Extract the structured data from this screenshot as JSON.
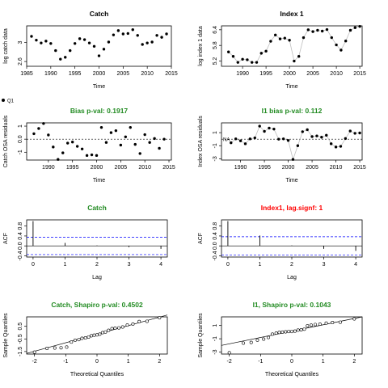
{
  "colors": {
    "green": "#228b22",
    "red": "#ff0000",
    "blue": "#0000ff",
    "grey": "#bebebe",
    "black": "#000000"
  },
  "legend_label": "Q1",
  "chart_data": [
    {
      "type": "scatter",
      "title": "Catch",
      "title_color": "#000000",
      "xlabel": "Time",
      "ylabel": "log catch data",
      "xlim": [
        1985,
        2015
      ],
      "ylim": [
        2.5,
        3.35
      ],
      "xticks": [
        1985,
        1990,
        1995,
        2000,
        2005,
        2010,
        2015
      ],
      "yticks": [
        2.6,
        3.0
      ],
      "connect": false,
      "zero_line": false,
      "points": [
        [
          1986,
          3.13
        ],
        [
          1987,
          3.05
        ],
        [
          1988,
          2.99
        ],
        [
          1989,
          3.03
        ],
        [
          1990,
          2.98
        ],
        [
          1991,
          2.83
        ],
        [
          1992,
          2.65
        ],
        [
          1993,
          2.69
        ],
        [
          1994,
          2.83
        ],
        [
          1995,
          2.98
        ],
        [
          1996,
          3.08
        ],
        [
          1997,
          3.06
        ],
        [
          1998,
          2.99
        ],
        [
          1999,
          2.92
        ],
        [
          2000,
          2.72
        ],
        [
          2001,
          2.86
        ],
        [
          2002,
          3.01
        ],
        [
          2003,
          3.16
        ],
        [
          2004,
          3.25
        ],
        [
          2005,
          3.18
        ],
        [
          2006,
          3.19
        ],
        [
          2007,
          3.27
        ],
        [
          2008,
          3.15
        ],
        [
          2009,
          2.96
        ],
        [
          2010,
          2.99
        ],
        [
          2011,
          3.01
        ],
        [
          2012,
          3.15
        ],
        [
          2013,
          3.11
        ],
        [
          2014,
          3.18
        ]
      ]
    },
    {
      "type": "line",
      "title": "Index 1",
      "title_color": "#000000",
      "xlabel": "Time",
      "ylabel": "log index 1 data",
      "xlim": [
        1985.5,
        2015.5
      ],
      "ylim": [
        5.0,
        6.55
      ],
      "xticks": [
        1990,
        1995,
        2000,
        2005,
        2010,
        2015
      ],
      "yticks": [
        5.2,
        5.8,
        6.4
      ],
      "connect": true,
      "zero_line": false,
      "points": [
        [
          1987,
          5.55
        ],
        [
          1988,
          5.38
        ],
        [
          1989,
          5.15
        ],
        [
          1990,
          5.27
        ],
        [
          1991,
          5.25
        ],
        [
          1992,
          5.15
        ],
        [
          1993,
          5.15
        ],
        [
          1994,
          5.5
        ],
        [
          1995,
          5.58
        ],
        [
          1996,
          5.96
        ],
        [
          1997,
          6.2
        ],
        [
          1998,
          6.05
        ],
        [
          1999,
          6.08
        ],
        [
          2000,
          6.0
        ],
        [
          2001,
          5.2
        ],
        [
          2002,
          5.38
        ],
        [
          2003,
          6.1
        ],
        [
          2004,
          6.4
        ],
        [
          2005,
          6.33
        ],
        [
          2006,
          6.38
        ],
        [
          2007,
          6.35
        ],
        [
          2008,
          6.41
        ],
        [
          2009,
          6.1
        ],
        [
          2010,
          5.82
        ],
        [
          2011,
          5.62
        ],
        [
          2012,
          5.97
        ],
        [
          2013,
          6.38
        ],
        [
          2014,
          6.48
        ],
        [
          2015,
          6.53
        ]
      ]
    },
    {
      "type": "scatter",
      "title": "Bias p-val: 0.1917",
      "title_color": "#228b22",
      "xlabel": "Time",
      "ylabel": "Catch OSA residuals",
      "xlim": [
        1985.5,
        2015.5
      ],
      "ylim": [
        -1.6,
        1.25
      ],
      "xticks": [
        1990,
        1995,
        2000,
        2005,
        2010,
        2015
      ],
      "yticks": [
        -1.0,
        0.0,
        1.0
      ],
      "connect": false,
      "zero_line": true,
      "points": [
        [
          1987,
          0.42
        ],
        [
          1988,
          0.82
        ],
        [
          1989,
          1.2
        ],
        [
          1990,
          0.32
        ],
        [
          1991,
          -0.6
        ],
        [
          1992,
          -1.55
        ],
        [
          1993,
          -1.05
        ],
        [
          1994,
          -0.3
        ],
        [
          1995,
          -0.22
        ],
        [
          1996,
          -0.55
        ],
        [
          1997,
          -0.75
        ],
        [
          1998,
          -1.25
        ],
        [
          1999,
          -1.2
        ],
        [
          2000,
          -1.25
        ],
        [
          2001,
          0.9
        ],
        [
          2002,
          -0.25
        ],
        [
          2003,
          0.5
        ],
        [
          2004,
          0.65
        ],
        [
          2005,
          -0.45
        ],
        [
          2006,
          0.18
        ],
        [
          2007,
          0.9
        ],
        [
          2008,
          -0.4
        ],
        [
          2009,
          -1.1
        ],
        [
          2010,
          0.35
        ],
        [
          2011,
          -0.25
        ],
        [
          2012,
          0.05
        ],
        [
          2013,
          -0.7
        ],
        [
          2014,
          0.0
        ]
      ]
    },
    {
      "type": "line",
      "title": "I1 bias p-val: 0.112",
      "title_color": "#228b22",
      "xlabel": "Time",
      "ylabel": "Index OSA residuals",
      "xlim": [
        1986,
        2015.5
      ],
      "ylim": [
        -3.2,
        2.5
      ],
      "xticks": [
        1990,
        1995,
        2000,
        2005,
        2010,
        2015
      ],
      "yticks": [
        -3,
        -1,
        1
      ],
      "connect": true,
      "zero_line": true,
      "na_label": "NA",
      "points": [
        [
          1988,
          -0.55
        ],
        [
          1989,
          0.05
        ],
        [
          1990,
          -0.25
        ],
        [
          1991,
          -0.7
        ],
        [
          1992,
          0.05
        ],
        [
          1993,
          0.2
        ],
        [
          1994,
          2.0
        ],
        [
          1995,
          1.2
        ],
        [
          1996,
          1.7
        ],
        [
          1997,
          1.55
        ],
        [
          1998,
          0.0
        ],
        [
          1999,
          0.05
        ],
        [
          2000,
          -0.2
        ],
        [
          2001,
          -3.1
        ],
        [
          2002,
          -1.0
        ],
        [
          2003,
          1.15
        ],
        [
          2004,
          1.45
        ],
        [
          2005,
          0.4
        ],
        [
          2006,
          0.5
        ],
        [
          2007,
          0.3
        ],
        [
          2008,
          0.6
        ],
        [
          2009,
          -0.7
        ],
        [
          2010,
          -1.2
        ],
        [
          2011,
          -1.1
        ],
        [
          2012,
          0.1
        ],
        [
          2013,
          1.25
        ],
        [
          2014,
          0.9
        ],
        [
          2015,
          0.95
        ]
      ]
    },
    {
      "type": "bar",
      "title": "Catch",
      "title_color": "#228b22",
      "xlabel": "Lag",
      "ylabel": "ACF",
      "xlim": [
        -0.2,
        4.2
      ],
      "ylim": [
        -0.45,
        1.05
      ],
      "xticks": [
        0,
        1,
        2,
        3,
        4
      ],
      "yticks": [
        -0.4,
        0.0,
        0.4,
        0.8
      ],
      "ci": 0.35,
      "bars": [
        [
          0,
          1.0
        ],
        [
          1,
          0.12
        ],
        [
          2,
          0.02
        ],
        [
          3,
          -0.05
        ],
        [
          4,
          -0.12
        ]
      ]
    },
    {
      "type": "bar",
      "title": "Index1, lag.signf: 1",
      "title_color": "#ff0000",
      "xlabel": "Lag",
      "ylabel": "ACF",
      "xlim": [
        -0.2,
        4.2
      ],
      "ylim": [
        -0.45,
        1.05
      ],
      "xticks": [
        0,
        1,
        2,
        3,
        4
      ],
      "yticks": [
        -0.4,
        0.0,
        0.4,
        0.8
      ],
      "ci": 0.37,
      "bars": [
        [
          0,
          1.0
        ],
        [
          1,
          0.42
        ],
        [
          2,
          0.02
        ],
        [
          3,
          -0.12
        ],
        [
          4,
          -0.2
        ]
      ]
    },
    {
      "type": "scatter",
      "title": "Catch, Shapiro p-val: 0.4502",
      "title_color": "#228b22",
      "xlabel": "Theoretical Quantiles",
      "ylabel": "Sample Quantiles",
      "xlim": [
        -2.25,
        2.25
      ],
      "ylim": [
        -1.7,
        1.25
      ],
      "xticks": [
        -2,
        -1,
        0,
        1,
        2
      ],
      "yticks": [
        -1.5,
        -0.5,
        0.5
      ],
      "connect": false,
      "zero_line": false,
      "qqline": [
        -2.25,
        -1.65,
        2.25,
        1.4
      ],
      "points": [
        [
          -2.0,
          -1.55
        ],
        [
          -1.6,
          -1.25
        ],
        [
          -1.35,
          -1.22
        ],
        [
          -1.15,
          -1.2
        ],
        [
          -0.97,
          -1.15
        ],
        [
          -0.82,
          -0.75
        ],
        [
          -0.7,
          -0.6
        ],
        [
          -0.58,
          -0.55
        ],
        [
          -0.48,
          -0.45
        ],
        [
          -0.37,
          -0.42
        ],
        [
          -0.27,
          -0.35
        ],
        [
          -0.18,
          -0.25
        ],
        [
          -0.09,
          -0.2
        ],
        [
          0.0,
          -0.18
        ],
        [
          0.09,
          -0.12
        ],
        [
          0.18,
          0.0
        ],
        [
          0.27,
          0.05
        ],
        [
          0.37,
          0.18
        ],
        [
          0.48,
          0.32
        ],
        [
          0.58,
          0.35
        ],
        [
          0.7,
          0.38
        ],
        [
          0.82,
          0.45
        ],
        [
          0.97,
          0.6
        ],
        [
          1.15,
          0.68
        ],
        [
          1.35,
          0.88
        ],
        [
          1.6,
          0.9
        ],
        [
          2.0,
          1.18
        ]
      ]
    },
    {
      "type": "scatter",
      "title": "I1, Shapiro p-val: 0.1043",
      "title_color": "#228b22",
      "xlabel": "Theoretical Quantiles",
      "ylabel": "Sample Quantiles",
      "xlim": [
        -2.25,
        2.25
      ],
      "ylim": [
        -3.3,
        2.3
      ],
      "xticks": [
        -2,
        -1,
        0,
        1,
        2
      ],
      "yticks": [
        -3,
        -1,
        1
      ],
      "connect": false,
      "zero_line": false,
      "qqline": [
        -2.25,
        -2.0,
        2.25,
        2.3
      ],
      "points": [
        [
          -2.0,
          -3.1
        ],
        [
          -1.55,
          -1.65
        ],
        [
          -1.3,
          -1.55
        ],
        [
          -1.1,
          -1.2
        ],
        [
          -0.9,
          -1.05
        ],
        [
          -0.75,
          -0.8
        ],
        [
          -0.62,
          -0.3
        ],
        [
          -0.5,
          -0.15
        ],
        [
          -0.4,
          -0.05
        ],
        [
          -0.3,
          0.0
        ],
        [
          -0.2,
          0.05
        ],
        [
          -0.1,
          0.1
        ],
        [
          0.0,
          0.1
        ],
        [
          0.1,
          0.15
        ],
        [
          0.2,
          0.3
        ],
        [
          0.3,
          0.35
        ],
        [
          0.4,
          0.45
        ],
        [
          0.5,
          0.95
        ],
        [
          0.62,
          1.05
        ],
        [
          0.75,
          1.15
        ],
        [
          0.9,
          1.2
        ],
        [
          1.1,
          1.35
        ],
        [
          1.3,
          1.45
        ],
        [
          1.55,
          1.5
        ],
        [
          2.0,
          2.0
        ]
      ]
    }
  ]
}
